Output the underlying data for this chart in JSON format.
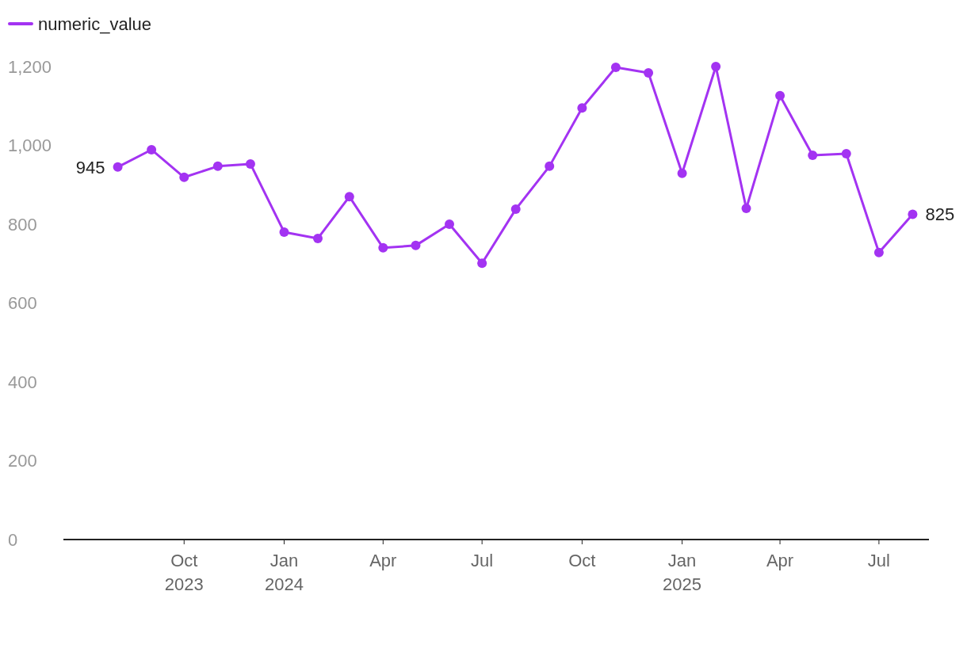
{
  "chart_data": {
    "type": "line",
    "x": [
      "2023-08",
      "2023-09",
      "2023-10",
      "2023-11",
      "2023-12",
      "2024-01",
      "2024-02",
      "2024-03",
      "2024-04",
      "2024-05",
      "2024-06",
      "2024-07",
      "2024-08",
      "2024-09",
      "2024-10",
      "2024-11",
      "2024-12",
      "2025-01",
      "2025-02",
      "2025-03",
      "2025-04",
      "2025-05",
      "2025-06",
      "2025-07",
      "2025-08"
    ],
    "series": [
      {
        "name": "numeric_value",
        "color": "#a333f2",
        "values": [
          945,
          989,
          919,
          947,
          953,
          780,
          764,
          870,
          740,
          746,
          800,
          701,
          838,
          947,
          1095,
          1198,
          1184,
          929,
          1200,
          840,
          1126,
          975,
          979,
          728,
          825
        ],
        "value_labels": [
          "945",
          null,
          null,
          null,
          null,
          null,
          null,
          null,
          null,
          null,
          null,
          null,
          null,
          null,
          null,
          null,
          null,
          null,
          null,
          null,
          null,
          null,
          null,
          null,
          "825"
        ]
      }
    ],
    "xlim": [
      "2023-06-12",
      "2025-08-16"
    ],
    "xticks": [
      {
        "value": "2023-10",
        "label": "Oct\n2023"
      },
      {
        "value": "2024-01",
        "label": "Jan\n2024"
      },
      {
        "value": "2024-04",
        "label": "Apr"
      },
      {
        "value": "2024-07",
        "label": "Jul"
      },
      {
        "value": "2024-10",
        "label": "Oct"
      },
      {
        "value": "2025-01",
        "label": "Jan\n2025"
      },
      {
        "value": "2025-04",
        "label": "Apr"
      },
      {
        "value": "2025-07",
        "label": "Jul"
      }
    ],
    "ylim": [
      0,
      1200
    ],
    "yticks": [
      0,
      200,
      400,
      600,
      800,
      {
        "value": 1000,
        "label": "1,000"
      },
      {
        "value": 1200,
        "label": "1,200"
      }
    ],
    "legend": "top left",
    "marker": "circle",
    "line_style": "solid",
    "grid": false
  }
}
